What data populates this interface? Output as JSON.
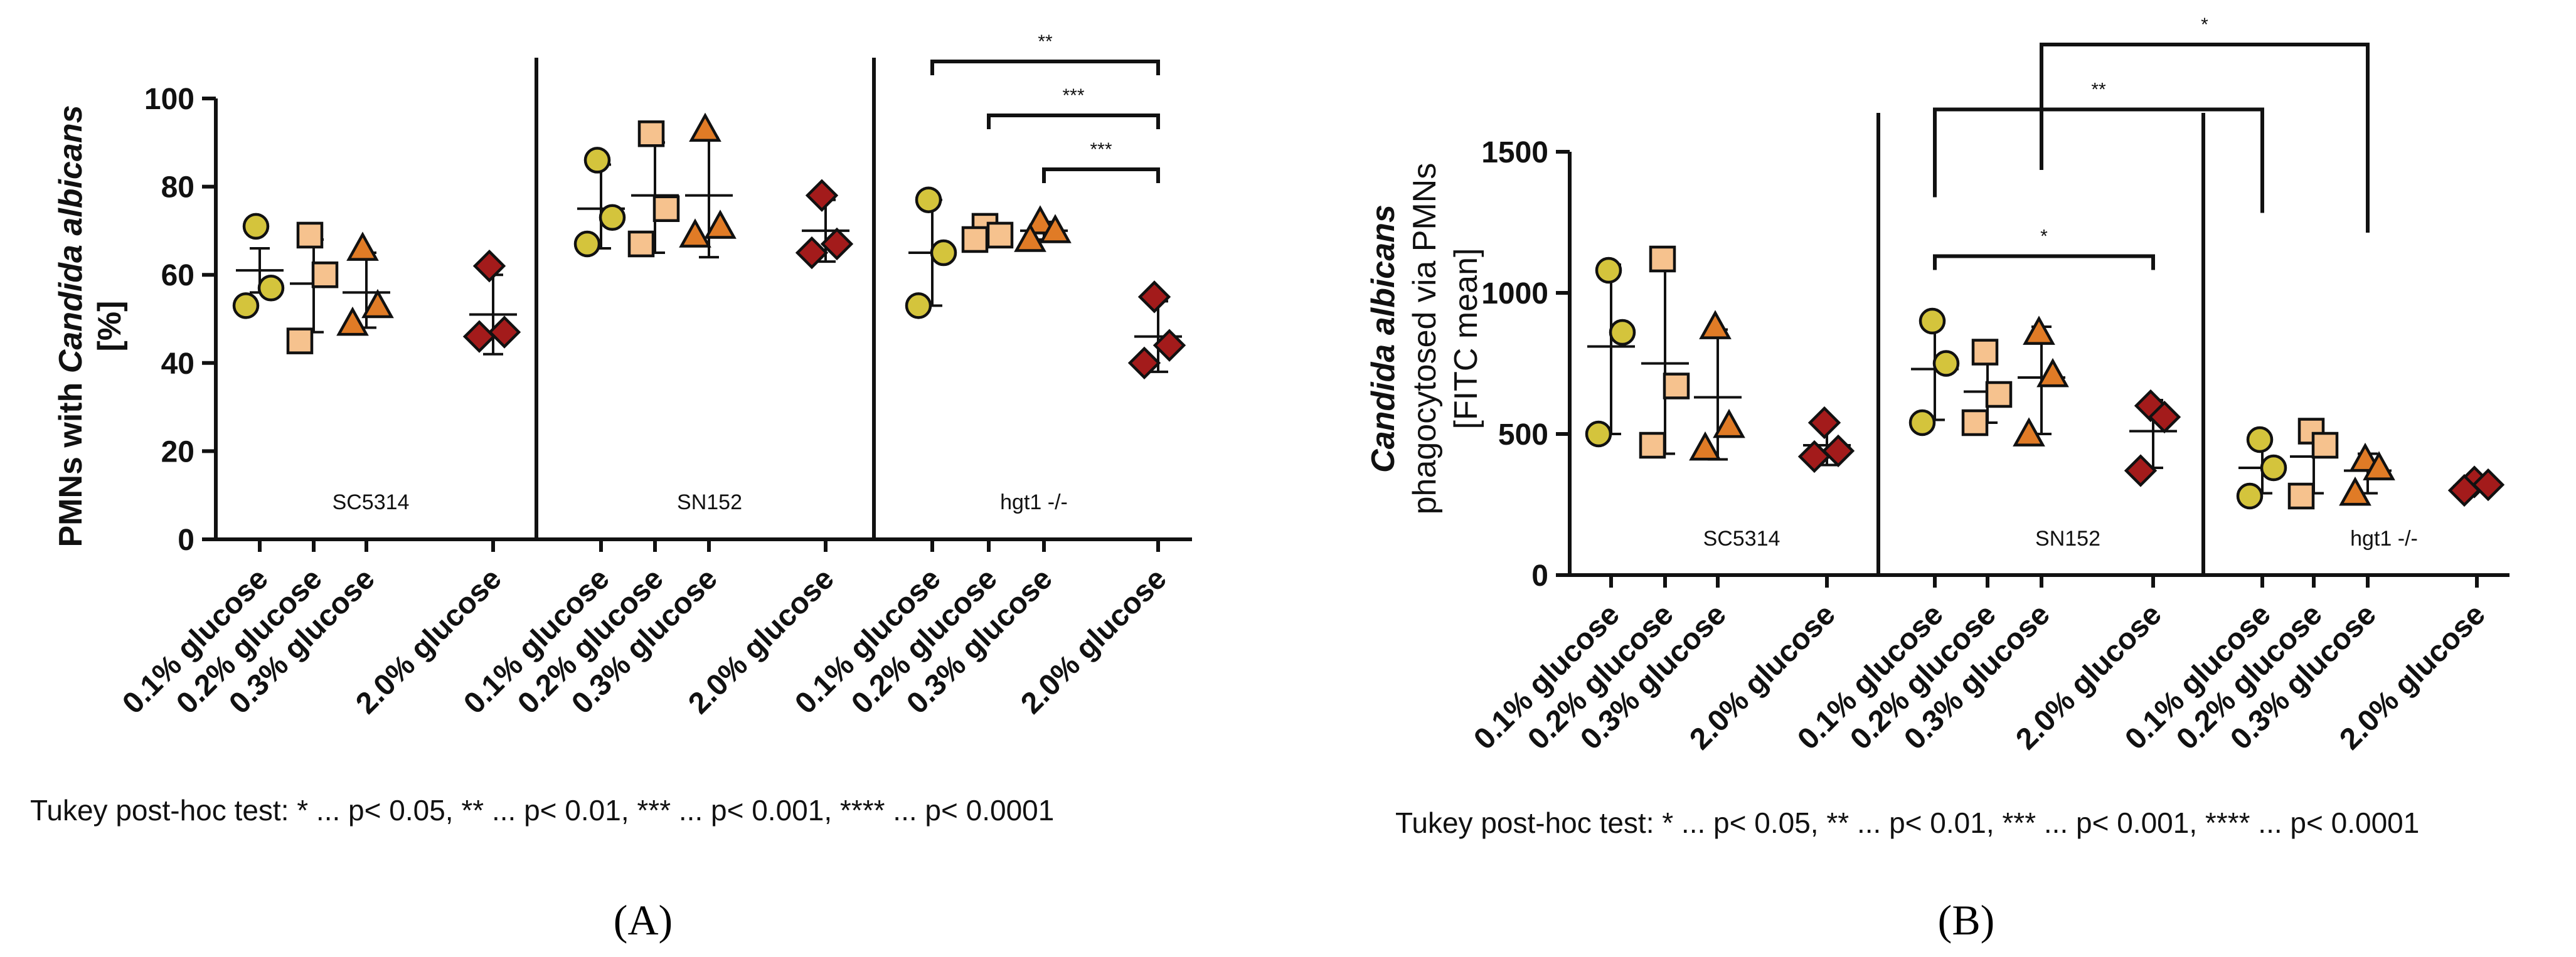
{
  "footnote": "Tukey post-hoc test: * ... p< 0.05, ** ... p< 0.01, *** ... p< 0.001, **** ... p< 0.0001",
  "chart_data": [
    {
      "panel": "(A)",
      "type": "scatter",
      "ylabel_parts": [
        "PMNs with ",
        "Candida albicans",
        "[%]"
      ],
      "ylim": [
        0,
        100
      ],
      "yticks": [
        0,
        20,
        40,
        60,
        80,
        100
      ],
      "groups": [
        "SC5314",
        "SN152",
        "hgt1 -/-"
      ],
      "categories": [
        "0.1% glucose",
        "0.2% glucose",
        "0.3% glucose",
        "2.0% glucose"
      ],
      "series": [
        {
          "group": "SC5314",
          "category": "0.1% glucose",
          "marker": "circle",
          "color": "#d4c43c",
          "points": [
            71,
            57,
            53
          ],
          "mean": 61,
          "sd": [
            56,
            66
          ]
        },
        {
          "group": "SC5314",
          "category": "0.2% glucose",
          "marker": "square",
          "color": "#f6c28e",
          "points": [
            69,
            60,
            45
          ],
          "mean": 58,
          "sd": [
            47,
            68
          ]
        },
        {
          "group": "SC5314",
          "category": "0.3% glucose",
          "marker": "triangle",
          "color": "#e07b26",
          "points": [
            66,
            53,
            49
          ],
          "mean": 56,
          "sd": [
            48,
            65
          ]
        },
        {
          "group": "SC5314",
          "category": "2.0% glucose",
          "marker": "diamond",
          "color": "#a31b1b",
          "points": [
            62,
            47,
            46
          ],
          "mean": 51,
          "sd": [
            42,
            60
          ]
        },
        {
          "group": "SN152",
          "category": "0.1% glucose",
          "marker": "circle",
          "color": "#d4c43c",
          "points": [
            86,
            73,
            67
          ],
          "mean": 75,
          "sd": [
            66,
            85
          ]
        },
        {
          "group": "SN152",
          "category": "0.2% glucose",
          "marker": "square",
          "color": "#f6c28e",
          "points": [
            92,
            75,
            67
          ],
          "mean": 78,
          "sd": [
            65,
            90
          ]
        },
        {
          "group": "SN152",
          "category": "0.3% glucose",
          "marker": "triangle",
          "color": "#e07b26",
          "points": [
            93,
            71,
            69
          ],
          "mean": 78,
          "sd": [
            64,
            91
          ]
        },
        {
          "group": "SN152",
          "category": "2.0% glucose",
          "marker": "diamond",
          "color": "#a31b1b",
          "points": [
            78,
            67,
            65
          ],
          "mean": 70,
          "sd": [
            63,
            77
          ]
        },
        {
          "group": "hgt1 -/-",
          "category": "0.1% glucose",
          "marker": "circle",
          "color": "#d4c43c",
          "points": [
            77,
            65,
            53
          ],
          "mean": 65,
          "sd": [
            53,
            77
          ]
        },
        {
          "group": "hgt1 -/-",
          "category": "0.2% glucose",
          "marker": "square",
          "color": "#f6c28e",
          "points": [
            71,
            69,
            68
          ],
          "mean": 69,
          "sd": [
            68,
            70
          ]
        },
        {
          "group": "hgt1 -/-",
          "category": "0.3% glucose",
          "marker": "triangle",
          "color": "#e07b26",
          "points": [
            72,
            70,
            68
          ],
          "mean": 70,
          "sd": [
            68,
            72
          ]
        },
        {
          "group": "hgt1 -/-",
          "category": "2.0% glucose",
          "marker": "diamond",
          "color": "#a31b1b",
          "points": [
            55,
            44,
            40
          ],
          "mean": 46,
          "sd": [
            38,
            54
          ]
        }
      ],
      "annotations": [
        {
          "from": 8,
          "to": 11,
          "level": 0,
          "label": "**"
        },
        {
          "from": 9,
          "to": 11,
          "level": 1,
          "label": "***"
        },
        {
          "from": 10,
          "to": 11,
          "level": 2,
          "label": "***"
        }
      ]
    },
    {
      "panel": "(B)",
      "type": "scatter",
      "ylabel_parts": [
        "Candida albicans",
        "phagocytosed via PMNs",
        "[FITC mean]"
      ],
      "ylim": [
        0,
        1500
      ],
      "yticks": [
        0,
        500,
        1000,
        1500
      ],
      "groups": [
        "SC5314",
        "SN152",
        "hgt1 -/-"
      ],
      "categories": [
        "0.1% glucose",
        "0.2% glucose",
        "0.3% glucose",
        "2.0% glucose"
      ],
      "series": [
        {
          "group": "SC5314",
          "category": "0.1% glucose",
          "marker": "circle",
          "color": "#d4c43c",
          "points": [
            1080,
            860,
            500
          ],
          "mean": 810,
          "sd": [
            500,
            1100
          ]
        },
        {
          "group": "SC5314",
          "category": "0.2% glucose",
          "marker": "square",
          "color": "#f6c28e",
          "points": [
            1120,
            670,
            460
          ],
          "mean": 750,
          "sd": [
            430,
            1100
          ]
        },
        {
          "group": "SC5314",
          "category": "0.3% glucose",
          "marker": "triangle",
          "color": "#e07b26",
          "points": [
            880,
            530,
            450
          ],
          "mean": 630,
          "sd": [
            410,
            870
          ]
        },
        {
          "group": "SC5314",
          "category": "2.0% glucose",
          "marker": "diamond",
          "color": "#a31b1b",
          "points": [
            540,
            440,
            420
          ],
          "mean": 460,
          "sd": [
            390,
            530
          ]
        },
        {
          "group": "SN152",
          "category": "0.1% glucose",
          "marker": "circle",
          "color": "#d4c43c",
          "points": [
            900,
            750,
            540
          ],
          "mean": 730,
          "sd": [
            550,
            900
          ]
        },
        {
          "group": "SN152",
          "category": "0.2% glucose",
          "marker": "square",
          "color": "#f6c28e",
          "points": [
            790,
            640,
            540
          ],
          "mean": 650,
          "sd": [
            540,
            780
          ]
        },
        {
          "group": "SN152",
          "category": "0.3% glucose",
          "marker": "triangle",
          "color": "#e07b26",
          "points": [
            860,
            710,
            500
          ],
          "mean": 700,
          "sd": [
            500,
            880
          ]
        },
        {
          "group": "SN152",
          "category": "2.0% glucose",
          "marker": "diamond",
          "color": "#a31b1b",
          "points": [
            600,
            560,
            370
          ],
          "mean": 510,
          "sd": [
            380,
            620
          ]
        },
        {
          "group": "hgt1 -/-",
          "category": "0.1% glucose",
          "marker": "circle",
          "color": "#d4c43c",
          "points": [
            480,
            380,
            280
          ],
          "mean": 380,
          "sd": [
            290,
            470
          ]
        },
        {
          "group": "hgt1 -/-",
          "category": "0.2% glucose",
          "marker": "square",
          "color": "#f6c28e",
          "points": [
            510,
            460,
            280
          ],
          "mean": 420,
          "sd": [
            290,
            530
          ]
        },
        {
          "group": "hgt1 -/-",
          "category": "0.3% glucose",
          "marker": "triangle",
          "color": "#e07b26",
          "points": [
            410,
            380,
            290
          ],
          "mean": 370,
          "sd": [
            290,
            430
          ]
        },
        {
          "group": "hgt1 -/-",
          "category": "2.0% glucose",
          "marker": "diamond",
          "color": "#a31b1b",
          "points": [
            330,
            320,
            300
          ],
          "mean": 315,
          "sd": [
            305,
            325
          ]
        }
      ],
      "annotations": [
        {
          "from": 4,
          "to": 7,
          "value": 1130,
          "label": "*"
        },
        {
          "from": 4,
          "to": 8,
          "value": 1650,
          "label": "**"
        },
        {
          "from": 6,
          "to": 10,
          "value": 1880,
          "label": "*"
        }
      ]
    }
  ]
}
